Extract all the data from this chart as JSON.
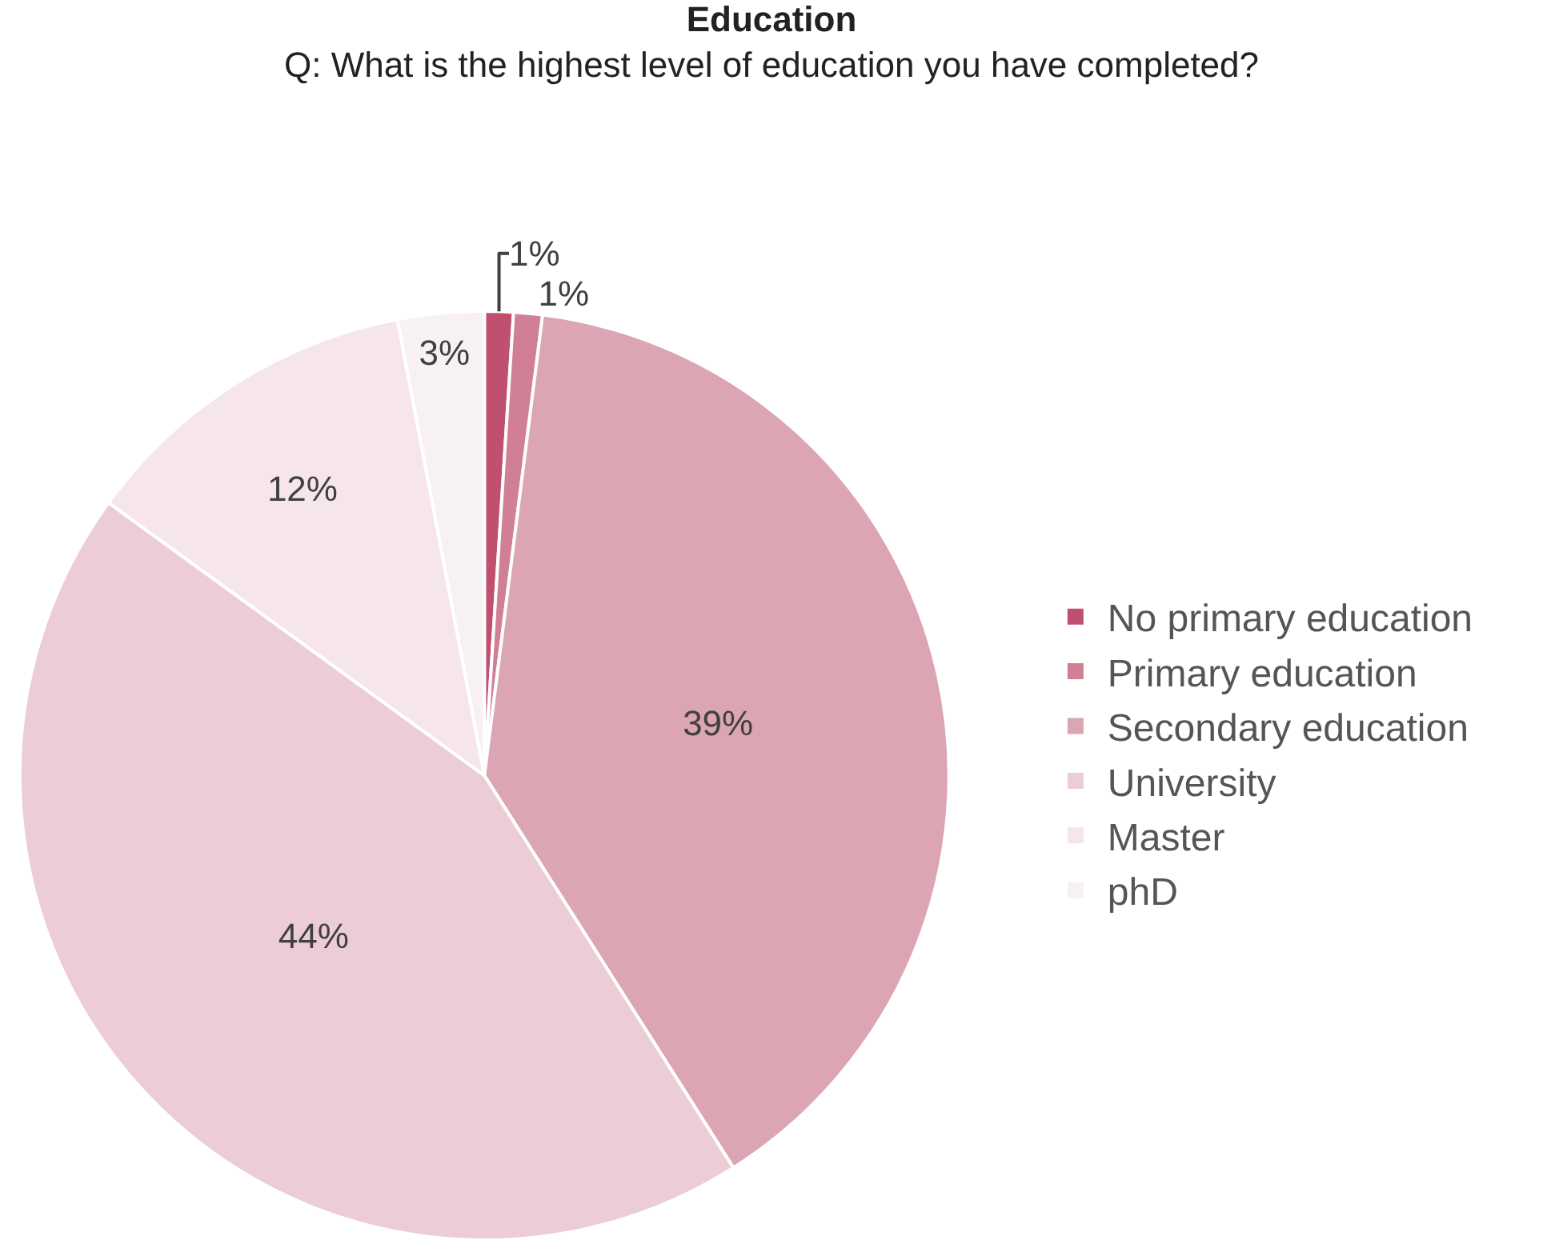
{
  "chart_data": {
    "type": "pie",
    "title": "Education",
    "subtitle": "Q: What is the highest level of education you have completed?",
    "categories": [
      "No primary education",
      "Primary education",
      "Secondary education",
      "University",
      "Master",
      "phD"
    ],
    "values": [
      1,
      1,
      39,
      44,
      12,
      3
    ],
    "value_labels": [
      "1%",
      "1%",
      "39%",
      "44%",
      "12%",
      "3%"
    ],
    "colors": [
      "#c0506f",
      "#d07f95",
      "#dba5b3",
      "#eccdd5",
      "#f6e6ea",
      "#f7f1f3"
    ],
    "legend": "right"
  }
}
